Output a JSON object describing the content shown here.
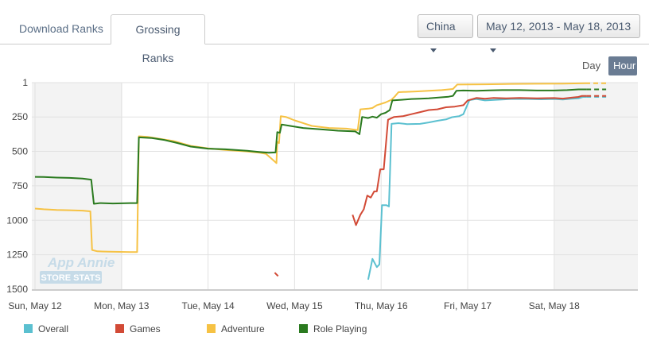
{
  "tabs": [
    {
      "label": "Download Ranks",
      "active": false
    },
    {
      "label": "Grossing Ranks",
      "active": true
    }
  ],
  "filters": {
    "country": "China",
    "date_range": "May 12, 2013 - May 18, 2013"
  },
  "granularity": {
    "day": "Day",
    "hour": "Hour",
    "selected": "Hour"
  },
  "watermark": {
    "line1": "App Annie",
    "line2": "STORE STATS"
  },
  "colors": {
    "overall": "#5bc0d0",
    "games": "#d24a36",
    "adventure": "#f6c244",
    "role_playing": "#2a7a1f"
  },
  "chart_data": {
    "type": "line",
    "title": "",
    "xlabel": "",
    "ylabel": "",
    "y_inverted": true,
    "ylim": [
      1,
      1500
    ],
    "yticks": [
      1,
      250,
      500,
      750,
      1000,
      1250,
      1500
    ],
    "xlim": [
      0,
      7.3
    ],
    "x_unit": "days since Sun, May 12 00:00",
    "xticks": [
      {
        "x": 0,
        "label": "Sun, May 12"
      },
      {
        "x": 1,
        "label": "Mon, May 13"
      },
      {
        "x": 2,
        "label": "Tue, May 14"
      },
      {
        "x": 3,
        "label": "Wed, May 15"
      },
      {
        "x": 4,
        "label": "Thu, May 16"
      },
      {
        "x": 5,
        "label": "Fri, May 17"
      },
      {
        "x": 6,
        "label": "Sat, May 18"
      }
    ],
    "legend_position": "bottom",
    "series": [
      {
        "name": "Overall",
        "color_key": "overall",
        "segments": [
          [
            [
              3.85,
              1430
            ],
            [
              3.9,
              1280
            ],
            [
              3.95,
              1340
            ],
            [
              3.98,
              1320
            ],
            [
              4.01,
              890
            ],
            [
              4.06,
              890
            ],
            [
              4.09,
              900
            ],
            [
              4.12,
              300
            ],
            [
              4.2,
              295
            ],
            [
              4.3,
              302
            ],
            [
              4.45,
              300
            ],
            [
              4.55,
              290
            ],
            [
              4.65,
              278
            ],
            [
              4.75,
              268
            ],
            [
              4.82,
              252
            ],
            [
              4.9,
              245
            ],
            [
              4.95,
              230
            ],
            [
              5.02,
              128
            ],
            [
              5.1,
              120
            ],
            [
              5.2,
              130
            ],
            [
              5.35,
              125
            ],
            [
              5.5,
              120
            ],
            [
              5.7,
              120
            ],
            [
              5.85,
              122
            ],
            [
              6.0,
              120
            ],
            [
              6.1,
              124
            ],
            [
              6.2,
              118
            ],
            [
              6.28,
              115
            ],
            [
              6.33,
              105
            ],
            [
              6.37,
              105
            ]
          ]
        ],
        "dashed_tail": [
          [
            6.37,
            105
          ],
          [
            6.6,
            105
          ]
        ]
      },
      {
        "name": "Games",
        "color_key": "games",
        "segments": [
          [
            [
              2.77,
              1380
            ],
            [
              2.81,
              1405
            ]
          ],
          [
            [
              3.67,
              960
            ],
            [
              3.71,
              1035
            ],
            [
              3.76,
              960
            ],
            [
              3.8,
              920
            ],
            [
              3.84,
              820
            ],
            [
              3.88,
              835
            ],
            [
              3.92,
              790
            ],
            [
              3.95,
              790
            ],
            [
              3.99,
              630
            ],
            [
              4.03,
              630
            ],
            [
              4.08,
              270
            ],
            [
              4.15,
              250
            ],
            [
              4.25,
              245
            ],
            [
              4.35,
              230
            ],
            [
              4.45,
              215
            ],
            [
              4.55,
              200
            ],
            [
              4.65,
              195
            ],
            [
              4.75,
              180
            ],
            [
              4.85,
              175
            ],
            [
              4.95,
              165
            ],
            [
              5.0,
              130
            ],
            [
              5.1,
              112
            ],
            [
              5.2,
              118
            ],
            [
              5.3,
              112
            ],
            [
              5.45,
              115
            ],
            [
              5.6,
              112
            ],
            [
              5.8,
              115
            ],
            [
              6.0,
              113
            ],
            [
              6.1,
              117
            ],
            [
              6.2,
              110
            ],
            [
              6.28,
              105
            ],
            [
              6.32,
              97
            ],
            [
              6.37,
              98
            ]
          ]
        ],
        "dashed_tail": [
          [
            6.37,
            98
          ],
          [
            6.6,
            98
          ]
        ]
      },
      {
        "name": "Adventure",
        "color_key": "adventure",
        "segments": [
          [
            [
              0,
              915
            ],
            [
              0.1,
              920
            ],
            [
              0.25,
              925
            ],
            [
              0.4,
              927
            ],
            [
              0.55,
              930
            ],
            [
              0.64,
              935
            ],
            [
              0.66,
              1215
            ],
            [
              0.72,
              1225
            ],
            [
              0.85,
              1228
            ],
            [
              1.1,
              1230
            ],
            [
              1.18,
              1230
            ],
            [
              1.2,
              390
            ],
            [
              1.3,
              395
            ],
            [
              1.45,
              410
            ],
            [
              1.6,
              425
            ],
            [
              1.8,
              460
            ],
            [
              2.0,
              478
            ],
            [
              2.2,
              490
            ],
            [
              2.45,
              500
            ],
            [
              2.6,
              510
            ],
            [
              2.67,
              518
            ],
            [
              2.72,
              545
            ],
            [
              2.79,
              585
            ],
            [
              2.8,
              430
            ],
            [
              2.82,
              440
            ],
            [
              2.84,
              245
            ],
            [
              2.9,
              250
            ],
            [
              3.0,
              275
            ],
            [
              3.2,
              315
            ],
            [
              3.4,
              330
            ],
            [
              3.6,
              335
            ],
            [
              3.73,
              345
            ],
            [
              3.76,
              195
            ],
            [
              3.85,
              190
            ],
            [
              3.9,
              185
            ],
            [
              3.95,
              165
            ],
            [
              4.05,
              145
            ],
            [
              4.12,
              125
            ],
            [
              4.16,
              100
            ],
            [
              4.2,
              70
            ],
            [
              4.4,
              65
            ],
            [
              4.55,
              60
            ],
            [
              4.7,
              55
            ],
            [
              4.83,
              47
            ],
            [
              4.88,
              15
            ],
            [
              5.2,
              13
            ],
            [
              5.5,
              10
            ],
            [
              5.8,
              9
            ],
            [
              6.1,
              8
            ],
            [
              6.36,
              5
            ]
          ]
        ],
        "dashed_tail": [
          [
            6.36,
            5
          ],
          [
            6.6,
            5
          ]
        ]
      },
      {
        "name": "Role Playing",
        "color_key": "role_playing",
        "segments": [
          [
            [
              0,
              685
            ],
            [
              0.1,
              686
            ],
            [
              0.25,
              690
            ],
            [
              0.4,
              692
            ],
            [
              0.55,
              697
            ],
            [
              0.65,
              705
            ],
            [
              0.68,
              880
            ],
            [
              0.75,
              875
            ],
            [
              0.9,
              878
            ],
            [
              1.1,
              875
            ],
            [
              1.18,
              875
            ],
            [
              1.2,
              398
            ],
            [
              1.35,
              403
            ],
            [
              1.5,
              418
            ],
            [
              1.65,
              440
            ],
            [
              1.8,
              465
            ],
            [
              2.0,
              480
            ],
            [
              2.2,
              485
            ],
            [
              2.45,
              495
            ],
            [
              2.6,
              505
            ],
            [
              2.7,
              510
            ],
            [
              2.78,
              508
            ],
            [
              2.8,
              360
            ],
            [
              2.83,
              365
            ],
            [
              2.85,
              305
            ],
            [
              2.95,
              315
            ],
            [
              3.1,
              330
            ],
            [
              3.3,
              340
            ],
            [
              3.5,
              350
            ],
            [
              3.7,
              355
            ],
            [
              3.75,
              375
            ],
            [
              3.78,
              250
            ],
            [
              3.85,
              258
            ],
            [
              3.9,
              248
            ],
            [
              3.95,
              255
            ],
            [
              4.0,
              230
            ],
            [
              4.05,
              220
            ],
            [
              4.1,
              200
            ],
            [
              4.13,
              130
            ],
            [
              4.25,
              125
            ],
            [
              4.35,
              120
            ],
            [
              4.45,
              118
            ],
            [
              4.55,
              115
            ],
            [
              4.65,
              110
            ],
            [
              4.78,
              103
            ],
            [
              4.83,
              97
            ],
            [
              4.87,
              60
            ],
            [
              4.95,
              58
            ],
            [
              5.1,
              60
            ],
            [
              5.25,
              57
            ],
            [
              5.4,
              55
            ],
            [
              5.6,
              55
            ],
            [
              5.8,
              58
            ],
            [
              6.0,
              58
            ],
            [
              6.15,
              55
            ],
            [
              6.28,
              50
            ],
            [
              6.37,
              50
            ]
          ]
        ],
        "dashed_tail": [
          [
            6.37,
            50
          ],
          [
            6.6,
            50
          ]
        ]
      }
    ]
  }
}
